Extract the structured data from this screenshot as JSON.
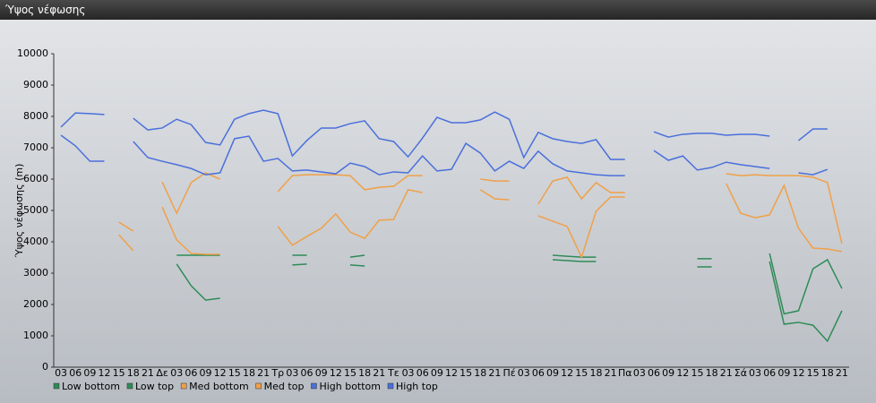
{
  "window_title": "Ύψος νέφωσης",
  "chart_data": {
    "type": "line",
    "y_label": "Ύψος νέφωσης (m)",
    "categories": [
      "03",
      "06",
      "09",
      "12",
      "15",
      "18",
      "21",
      "Δε",
      "03",
      "06",
      "09",
      "12",
      "15",
      "18",
      "21",
      "Τρ",
      "03",
      "06",
      "09",
      "12",
      "15",
      "18",
      "21",
      "Τε",
      "03",
      "06",
      "09",
      "12",
      "15",
      "18",
      "21",
      "Πέ",
      "03",
      "06",
      "09",
      "12",
      "15",
      "18",
      "21",
      "Πα",
      "03",
      "06",
      "09",
      "12",
      "15",
      "18",
      "21",
      "Σά",
      "03",
      "06",
      "09",
      "12",
      "15",
      "18",
      "21"
    ],
    "ylim": [
      0,
      10000
    ],
    "yticks": [
      0,
      1000,
      2000,
      3000,
      4000,
      5000,
      6000,
      7000,
      8000,
      9000,
      10000
    ],
    "grid": false,
    "series": [
      {
        "name": "Low bottom",
        "color": "#2e8b57",
        "values": [
          null,
          null,
          null,
          null,
          null,
          null,
          null,
          null,
          3290,
          2600,
          2140,
          2200,
          null,
          null,
          null,
          null,
          3260,
          3290,
          null,
          null,
          3260,
          3230,
          null,
          null,
          null,
          null,
          null,
          null,
          null,
          null,
          null,
          null,
          null,
          null,
          3430,
          3400,
          3370,
          3370,
          null,
          null,
          null,
          null,
          null,
          null,
          3200,
          3200,
          null,
          null,
          null,
          3370,
          1370,
          1430,
          1340,
          830,
          1800
        ]
      },
      {
        "name": "Low top",
        "color": "#2e8b57",
        "values": [
          null,
          null,
          null,
          null,
          null,
          null,
          null,
          null,
          3570,
          3570,
          3570,
          3570,
          null,
          null,
          null,
          null,
          3570,
          3570,
          null,
          null,
          3510,
          3570,
          null,
          null,
          null,
          null,
          null,
          null,
          null,
          null,
          null,
          null,
          null,
          null,
          3570,
          3540,
          3510,
          3510,
          null,
          null,
          null,
          null,
          null,
          null,
          3460,
          3460,
          null,
          null,
          null,
          3630,
          1700,
          1800,
          3140,
          3430,
          2510
        ]
      },
      {
        "name": "Med bottom",
        "color": "#f0a048",
        "values": [
          null,
          null,
          null,
          null,
          4230,
          3710,
          null,
          5110,
          4060,
          3630,
          3600,
          3600,
          null,
          null,
          null,
          4490,
          3890,
          4170,
          4430,
          4890,
          4310,
          4110,
          4690,
          4710,
          5660,
          5570,
          null,
          null,
          null,
          5660,
          5370,
          5340,
          null,
          4830,
          4660,
          4490,
          3510,
          4970,
          5430,
          5430,
          null,
          null,
          null,
          null,
          null,
          null,
          5860,
          4910,
          4770,
          4860,
          5800,
          4430,
          3800,
          3770,
          3690
        ]
      },
      {
        "name": "Med top",
        "color": "#f0a048",
        "values": [
          null,
          null,
          null,
          null,
          4630,
          4340,
          null,
          5910,
          4910,
          5890,
          6200,
          6000,
          null,
          null,
          null,
          5600,
          6110,
          6140,
          6140,
          6140,
          6110,
          5660,
          5740,
          5770,
          6110,
          6110,
          null,
          null,
          null,
          6000,
          5940,
          5940,
          null,
          5200,
          5940,
          6060,
          5370,
          5890,
          5570,
          5570,
          null,
          null,
          null,
          null,
          null,
          null,
          6170,
          6110,
          6140,
          6110,
          6110,
          6110,
          6060,
          5890,
          3940
        ]
      },
      {
        "name": "High bottom",
        "color": "#4a6fdc",
        "values": [
          7400,
          7060,
          6570,
          6570,
          null,
          7200,
          6690,
          6570,
          6460,
          6340,
          6140,
          6200,
          7290,
          7370,
          6570,
          6660,
          6260,
          6290,
          6230,
          6170,
          6510,
          6400,
          6140,
          6230,
          6200,
          6740,
          6260,
          6310,
          7140,
          6830,
          6260,
          6570,
          6340,
          6890,
          6490,
          6260,
          6200,
          6140,
          6110,
          6110,
          null,
          6910,
          6600,
          6740,
          6290,
          6370,
          6540,
          6460,
          6400,
          6340,
          null,
          6200,
          6140,
          6310,
          null
        ]
      },
      {
        "name": "High top",
        "color": "#4a6fdc",
        "values": [
          7660,
          8110,
          8090,
          8060,
          null,
          7940,
          7570,
          7630,
          7910,
          7740,
          7170,
          7090,
          7910,
          8090,
          8200,
          8090,
          6740,
          7230,
          7630,
          7630,
          7770,
          7860,
          7290,
          7200,
          6710,
          7310,
          7970,
          7800,
          7800,
          7890,
          8140,
          7910,
          6690,
          7490,
          7290,
          7200,
          7140,
          7260,
          6630,
          6630,
          null,
          7510,
          7340,
          7430,
          7460,
          7460,
          7400,
          7430,
          7430,
          7370,
          null,
          7230,
          7600,
          7600,
          null
        ]
      }
    ]
  }
}
